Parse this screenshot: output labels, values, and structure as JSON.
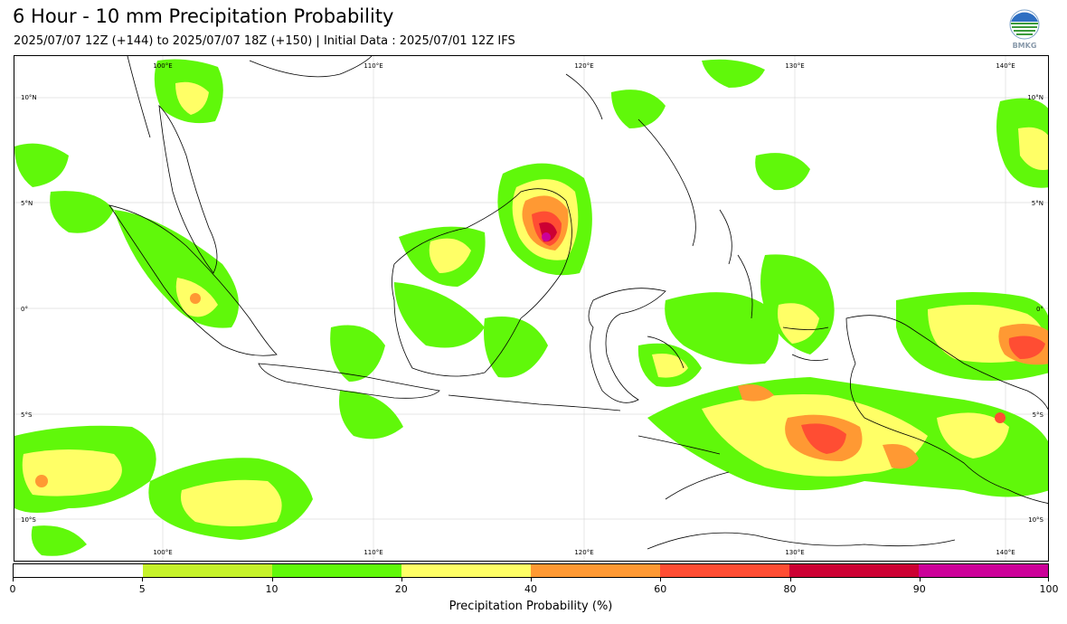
{
  "header": {
    "title": "6 Hour - 10 mm Precipitation Probability",
    "subtitle": "2025/07/07 12Z (+144) to 2025/07/07 18Z (+150) | Initial Data : 2025/07/01 12Z IFS",
    "logo_text": "BMKG"
  },
  "map": {
    "region": "Indonesia / Maritime Continent",
    "lon_range": [
      95,
      142
    ],
    "lat_range": [
      -12,
      12
    ],
    "lon_labels": [
      "100°E",
      "110°E",
      "120°E",
      "130°E",
      "140°E"
    ],
    "lat_labels": [
      "10°N",
      "5°N",
      "0°",
      "5°S",
      "10°S"
    ],
    "grid": true,
    "land_color": "#ffffff",
    "coastline_color": "#000000"
  },
  "colorbar": {
    "title": "Precipitation Probability (%)",
    "ticks": [
      "0",
      "5",
      "10",
      "20",
      "40",
      "60",
      "80",
      "90",
      "100"
    ],
    "colors": [
      "#ffffff",
      "#c6f22a",
      "#60f80a",
      "#ffff66",
      "#ff9933",
      "#ff4d33",
      "#cc0033",
      "#cc0099"
    ]
  }
}
